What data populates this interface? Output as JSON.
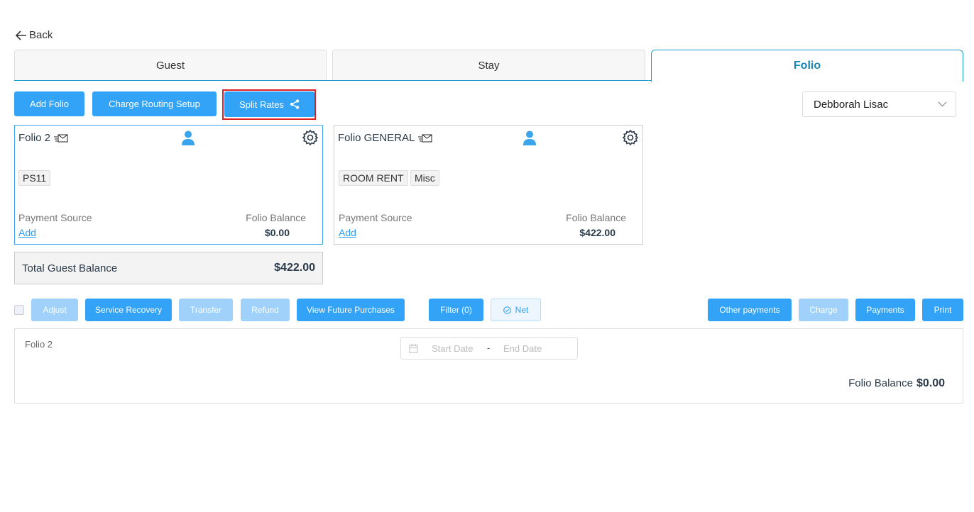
{
  "nav": {
    "back_label": "Back"
  },
  "tabs": [
    {
      "label": "Guest"
    },
    {
      "label": "Stay"
    },
    {
      "label": "Folio"
    }
  ],
  "toolbar": {
    "add_folio": "Add Folio",
    "charge_routing": "Charge Routing Setup",
    "split_rates": "Split Rates",
    "guest_select": "Debborah Lisac"
  },
  "folios": [
    {
      "title": "Folio 2",
      "chips": [
        "PS11"
      ],
      "payment_source_label": "Payment Source",
      "payment_add": "Add",
      "balance_label": "Folio Balance",
      "balance": "$0.00"
    },
    {
      "title": "Folio GENERAL",
      "chips": [
        "ROOM RENT",
        "Misc"
      ],
      "payment_source_label": "Payment Source",
      "payment_add": "Add",
      "balance_label": "Folio Balance",
      "balance": "$422.00"
    }
  ],
  "total": {
    "label": "Total Guest Balance",
    "value": "$422.00"
  },
  "actions": {
    "adjust": "Adjust",
    "service_recovery": "Service Recovery",
    "transfer": "Transfer",
    "refund": "Refund",
    "view_future": "View Future Purchases",
    "filter": "Filter (0)",
    "net": "Net",
    "other_payments": "Other payments",
    "charge": "Charge",
    "payments": "Payments",
    "print": "Print"
  },
  "detail": {
    "folio_name": "Folio 2",
    "start_placeholder": "Start Date",
    "end_placeholder": "End Date",
    "separator": "-",
    "balance_label": "Folio Balance",
    "balance": "$0.00"
  },
  "colors": {
    "primary": "#33a3f7",
    "disabled": "#9fd1fb",
    "tab_active": "#1a86b5",
    "highlight": "#e02020"
  }
}
